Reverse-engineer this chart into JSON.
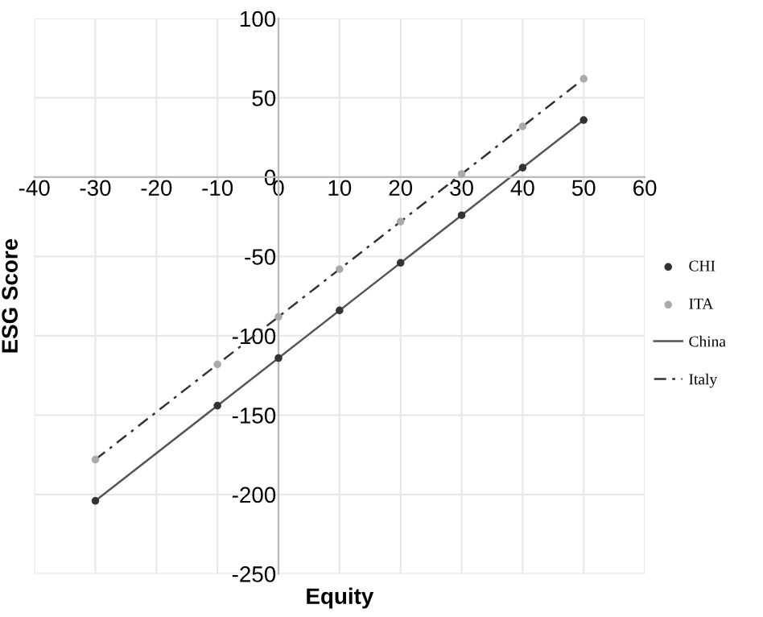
{
  "chart_data": {
    "type": "line",
    "xlabel": "Equity",
    "ylabel": "ESG Score",
    "xlim": [
      -40,
      60
    ],
    "ylim": [
      -250,
      100
    ],
    "xticks": [
      -40,
      -30,
      -20,
      -10,
      0,
      10,
      20,
      30,
      40,
      50,
      60
    ],
    "yticks": [
      -250,
      -200,
      -150,
      -100,
      -50,
      0,
      50,
      100
    ],
    "grid": true,
    "legend": "right",
    "series": [
      {
        "name": "CHI",
        "type": "scatter",
        "marker": "circle",
        "color": "#333333",
        "x": [
          -30,
          -10,
          0,
          10,
          20,
          30,
          40,
          50
        ],
        "values": [
          -204,
          -144,
          -114,
          -84,
          -54,
          -24,
          6,
          36
        ]
      },
      {
        "name": "ITA",
        "type": "scatter",
        "marker": "circle",
        "color": "#aaaaaa",
        "x": [
          -30,
          -10,
          0,
          10,
          20,
          30,
          40,
          50
        ],
        "values": [
          -178,
          -118,
          -88,
          -58,
          -28,
          2,
          32,
          62
        ]
      },
      {
        "name": "China",
        "line_style": "solid",
        "color": "#555555",
        "x": [
          -30,
          50
        ],
        "values": [
          -204,
          36
        ]
      },
      {
        "name": "Italy",
        "line_style": "dashdot",
        "color": "#333333",
        "x": [
          -30,
          50
        ],
        "values": [
          -178,
          62
        ]
      }
    ]
  }
}
